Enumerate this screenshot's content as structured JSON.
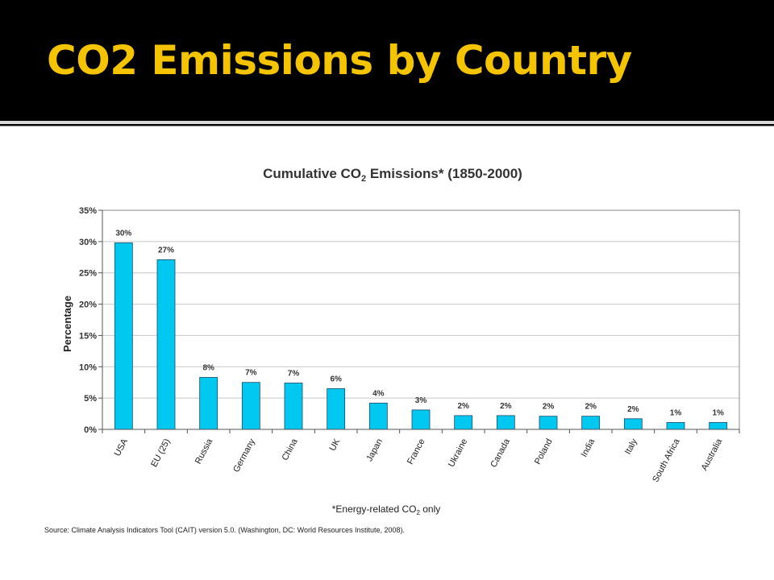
{
  "slide": {
    "title": "CO2 Emissions by Country"
  },
  "colors": {
    "title": "#F5C400",
    "bar": "#00C8F0",
    "bar_stroke": "#1a4a66",
    "background": "#000000"
  },
  "chart_data": {
    "type": "bar",
    "title_main": "Cumulative CO",
    "title_sub": "2",
    "title_tail": " Emissions* (1850-2000)",
    "ylabel": "Percentage",
    "xlabel": "",
    "ylim": [
      0,
      35
    ],
    "yticks": [
      "0%",
      "5%",
      "10%",
      "15%",
      "20%",
      "25%",
      "30%",
      "35%"
    ],
    "grid": true,
    "categories": [
      "USA",
      "EU (25)",
      "Russia",
      "Germany",
      "China",
      "UK",
      "Japan",
      "France",
      "Ukraine",
      "Canada",
      "Poland",
      "India",
      "Italy",
      "South Africa",
      "Australia"
    ],
    "values": [
      29.8,
      27.1,
      8.3,
      7.5,
      7.4,
      6.5,
      4.2,
      3.1,
      2.2,
      2.2,
      2.1,
      2.1,
      1.7,
      1.1,
      1.1
    ],
    "data_labels": [
      "30%",
      "27%",
      "8%",
      "7%",
      "7%",
      "6%",
      "4%",
      "3%",
      "2%",
      "2%",
      "2%",
      "2%",
      "2%",
      "1%",
      "1%"
    ],
    "footnote_main": "*Energy-related CO",
    "footnote_sub": "2",
    "footnote_tail": " only",
    "source": "Source: Climate Analysis Indicators Tool (CAIT) version 5.0. (Washington, DC: World Resources Institute, 2008)."
  }
}
